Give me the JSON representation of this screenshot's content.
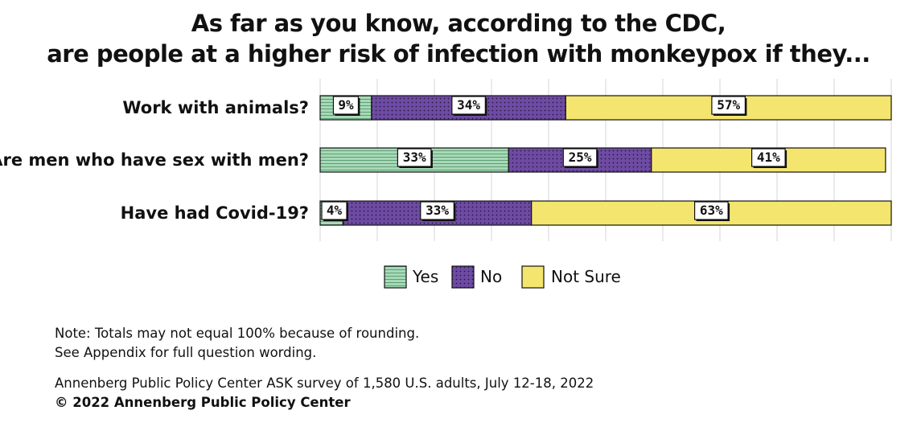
{
  "title_line1": "As far as you know, according to the CDC,",
  "title_line2": "are people at a higher risk of infection with monkeypox if they...",
  "note_line1": "Note: Totals may not equal 100% because of rounding.",
  "note_line2": "See Appendix for full question wording.",
  "source": "Annenberg Public Policy Center ASK survey of 1,580 U.S. adults, July 12-18, 2022",
  "copyright": "© 2022 Annenberg Public Policy Center",
  "colors": {
    "yes": "#9fd3b0",
    "no": "#6b4a9e",
    "not_sure": "#f3e46b",
    "label_box": "#ffffff"
  },
  "chart_data": {
    "type": "bar",
    "orientation": "horizontal",
    "stacked": true,
    "title": "As far as you know, according to the CDC, are people at a higher risk of infection with monkeypox if they...",
    "categories": [
      "Work with animals?",
      "Are men who have sex with men?",
      "Have had Covid-19?"
    ],
    "series": [
      {
        "name": "Yes",
        "values": [
          9,
          33,
          4
        ],
        "labels": [
          "9%",
          "33%",
          "4%"
        ]
      },
      {
        "name": "No",
        "values": [
          34,
          25,
          33
        ],
        "labels": [
          "34%",
          "25%",
          "33%"
        ]
      },
      {
        "name": "Not Sure",
        "values": [
          57,
          41,
          63
        ],
        "labels": [
          "57%",
          "41%",
          "63%"
        ]
      }
    ],
    "xlim": [
      0,
      100
    ],
    "grid": true,
    "legend": "bottom-center"
  }
}
